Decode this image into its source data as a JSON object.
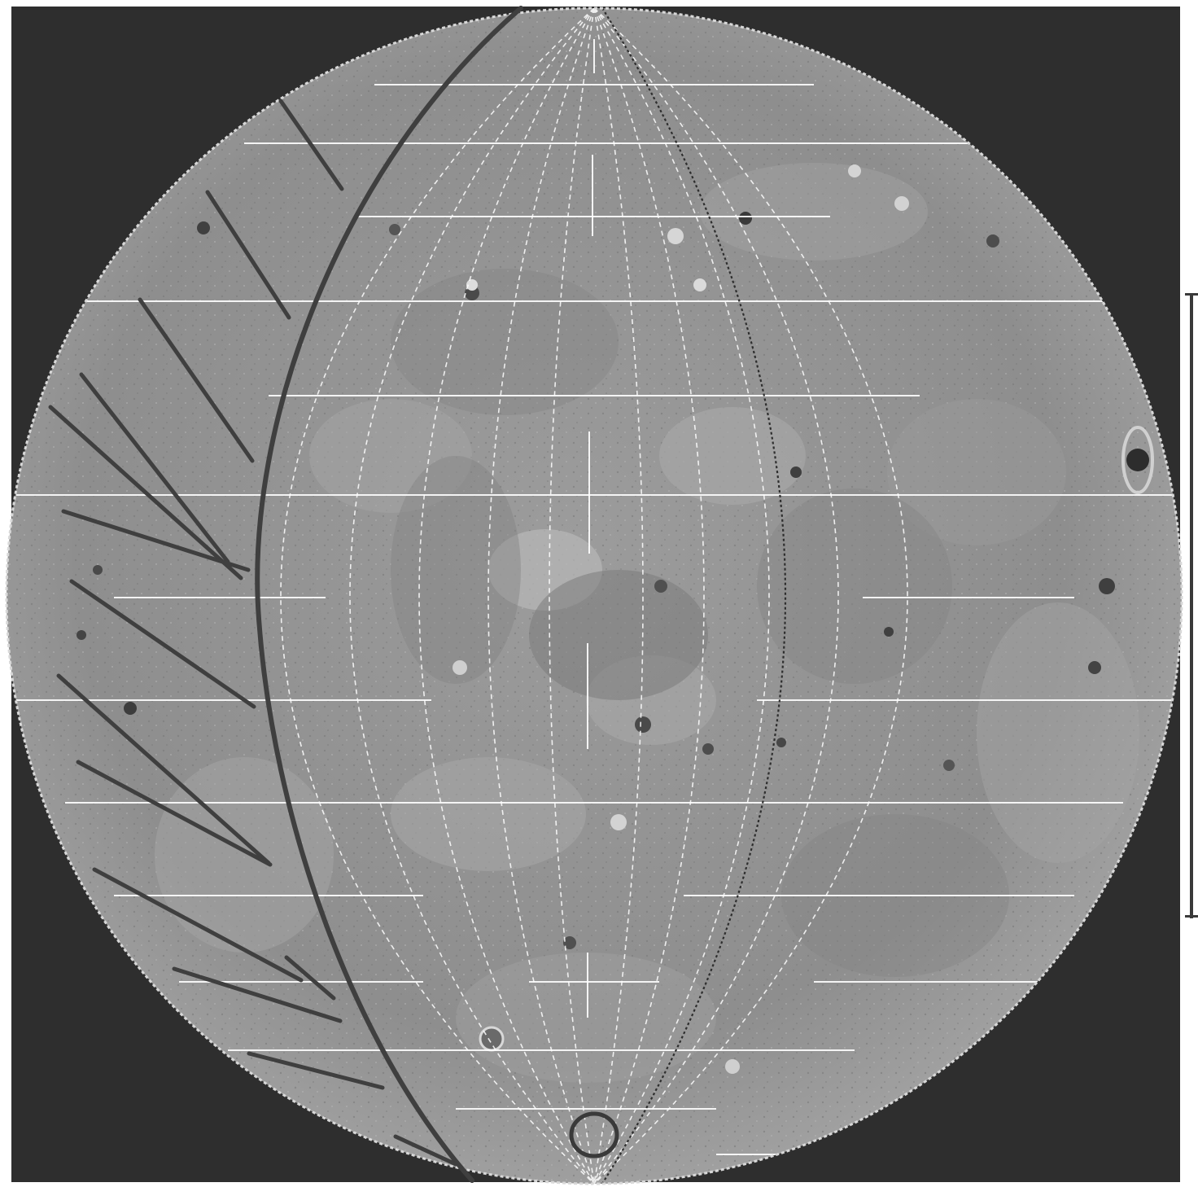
{
  "image": {
    "subject": "grayscale-planetary-globe",
    "colors": {
      "background": "#2e2e2e",
      "surface_light": "#b4b4b4",
      "surface_mid": "#8f8f8f",
      "surface_dark": "#6a6a6a",
      "grid": "#ffffff",
      "annotation_ink": "#3a3a3a"
    }
  }
}
